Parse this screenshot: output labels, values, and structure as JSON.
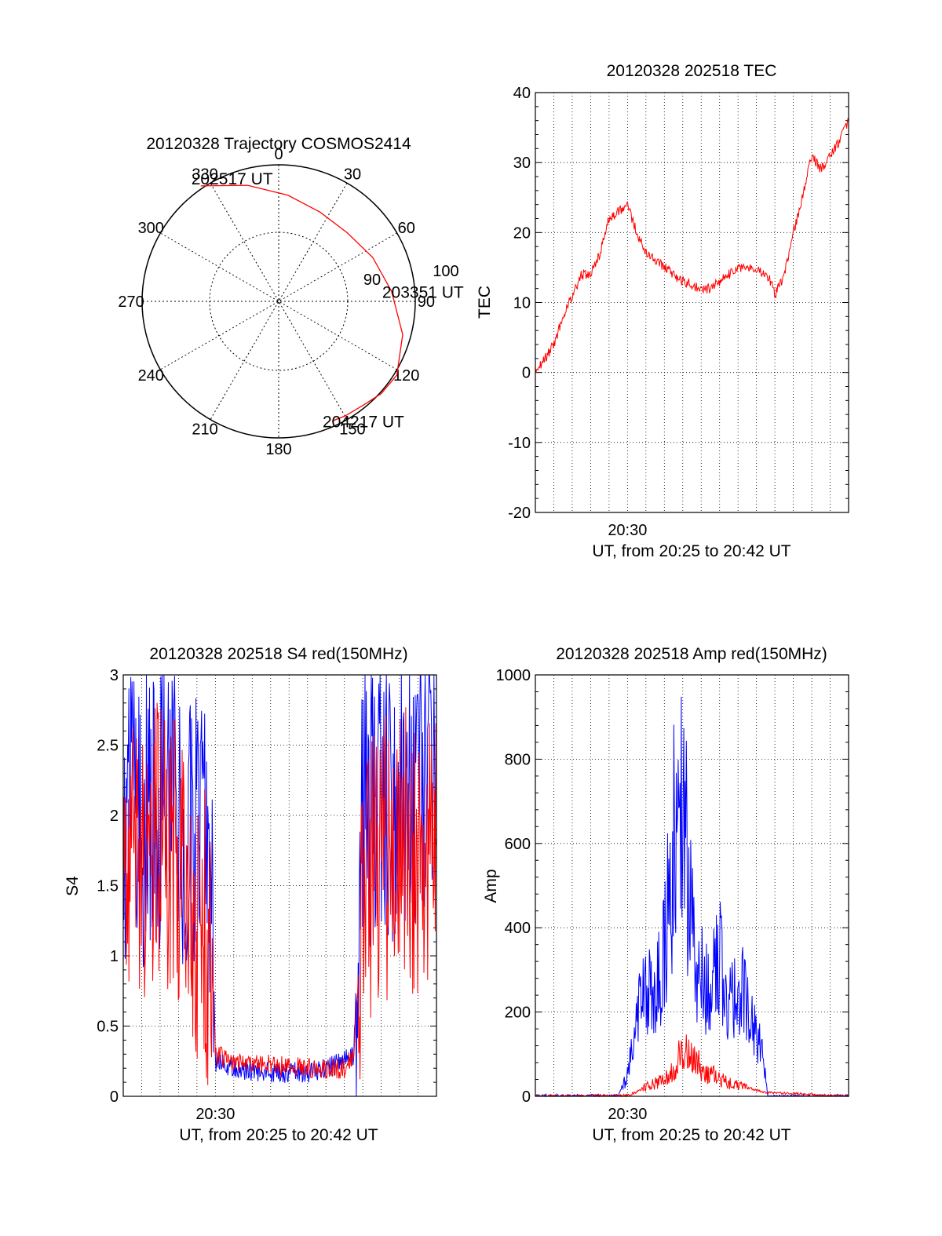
{
  "chart_data": [
    {
      "type": "polar",
      "title": "20120328 Trajectory COSMOS2414",
      "angle_labels": [
        "0",
        "30",
        "60",
        "90",
        "120",
        "150",
        "180",
        "210",
        "240",
        "270",
        "300",
        "330"
      ],
      "angle_values": [
        0,
        30,
        60,
        90,
        120,
        150,
        180,
        210,
        240,
        270,
        300,
        330
      ],
      "radius_labels": [
        "100",
        "90"
      ],
      "series": [
        {
          "color": "#ff0000",
          "points": [
            [
              -34,
              102
            ],
            [
              -15,
              88
            ],
            [
              5,
              78
            ],
            [
              25,
              72
            ],
            [
              45,
              71
            ],
            [
              65,
              76
            ],
            [
              85,
              83
            ],
            [
              105,
              94
            ],
            [
              122,
              102
            ],
            [
              132,
              101
            ],
            [
              141,
              98
            ],
            [
              150,
              97
            ],
            [
              156,
              96
            ]
          ]
        }
      ],
      "annotations": [
        {
          "text": "202517 UT",
          "az": -34,
          "r": 102
        },
        {
          "text": "203351 UT",
          "az": 85,
          "r": 83
        },
        {
          "text": "204217 UT",
          "az": 156,
          "r": 96
        }
      ]
    },
    {
      "type": "line",
      "title": "20120328 202518 TEC",
      "xlabel": "UT, from 20:25 to 20:42 UT",
      "ylabel": "TEC",
      "xlim": [
        0,
        17
      ],
      "ylim": [
        -20,
        40
      ],
      "yticks": [
        -20,
        -10,
        0,
        10,
        20,
        30,
        40
      ],
      "xticks": [
        {
          "label": "20:30",
          "value": 5
        }
      ],
      "grid": true,
      "series": [
        {
          "color": "#ff0000",
          "x": [
            0,
            0.5,
            1,
            1.5,
            2,
            2.5,
            3,
            3.5,
            4,
            4.5,
            5,
            5.5,
            6,
            7,
            8,
            9,
            9.5,
            10,
            11,
            12,
            12.8,
            13,
            13.5,
            14,
            14.5,
            15,
            15.5,
            16,
            16.5,
            17
          ],
          "y": [
            0,
            2,
            4,
            8,
            11,
            14,
            14,
            17,
            22,
            23,
            24,
            20,
            17,
            15,
            13,
            12,
            12,
            13,
            15,
            15,
            13,
            11,
            14,
            20,
            25,
            31,
            29,
            31,
            33,
            36
          ]
        }
      ]
    },
    {
      "type": "line",
      "title": "20120328 202518 S4 red(150MHz)",
      "xlabel": "UT, from 20:25 to 20:42 UT",
      "ylabel": "S4",
      "xlim": [
        0,
        17
      ],
      "ylim": [
        0,
        3
      ],
      "yticks": [
        0,
        0.5,
        1,
        1.5,
        2,
        2.5,
        3
      ],
      "xticks": [
        {
          "label": "20:30",
          "value": 5
        }
      ],
      "grid": true,
      "series": [
        {
          "color": "#0000ff",
          "x": [
            0,
            1,
            2,
            3,
            4,
            4.8,
            5,
            6,
            8,
            10,
            11,
            12,
            12.5,
            13,
            14,
            15,
            16,
            17
          ],
          "y": [
            2.0,
            1.9,
            2.1,
            2.0,
            1.8,
            1.6,
            0.25,
            0.2,
            0.17,
            0.17,
            0.2,
            0.25,
            0.3,
            2.0,
            2.2,
            2.0,
            2.3,
            2.0
          ]
        },
        {
          "color": "#ff0000",
          "x": [
            0,
            1,
            2,
            3,
            4,
            4.8,
            5,
            6,
            8,
            10,
            11,
            12,
            12.5,
            13,
            14,
            15,
            16,
            17
          ],
          "y": [
            1.8,
            1.6,
            1.9,
            1.6,
            1.3,
            1.0,
            0.3,
            0.25,
            0.22,
            0.2,
            0.2,
            0.2,
            0.3,
            1.3,
            1.7,
            1.8,
            1.6,
            1.7
          ]
        }
      ]
    },
    {
      "type": "line",
      "title": "20120328 202518 Amp red(150MHz)",
      "xlabel": "UT, from 20:25 to 20:42 UT",
      "ylabel": "Amp",
      "xlim": [
        0,
        17
      ],
      "ylim": [
        0,
        1000
      ],
      "yticks": [
        0,
        200,
        400,
        600,
        800,
        1000
      ],
      "xticks": [
        {
          "label": "20:30",
          "value": 5
        }
      ],
      "grid": true,
      "series": [
        {
          "color": "#0000ff",
          "x": [
            0,
            4.5,
            5,
            5.5,
            6,
            6.5,
            7,
            7.5,
            8,
            8.5,
            9,
            9.5,
            10,
            10.5,
            11,
            11.5,
            12,
            12.4,
            12.6,
            17
          ],
          "y": [
            2,
            2,
            50,
            180,
            250,
            230,
            330,
            600,
            700,
            400,
            300,
            250,
            320,
            200,
            280,
            200,
            140,
            90,
            0,
            2
          ]
        },
        {
          "color": "#ff0000",
          "x": [
            0,
            5,
            5.5,
            6,
            6.5,
            7,
            7.5,
            8,
            8.5,
            9,
            9.5,
            10,
            10.5,
            11,
            11.5,
            12,
            12.4,
            17
          ],
          "y": [
            0,
            2,
            10,
            25,
            30,
            40,
            60,
            110,
            90,
            70,
            50,
            45,
            30,
            25,
            20,
            15,
            10,
            0
          ]
        }
      ]
    }
  ]
}
